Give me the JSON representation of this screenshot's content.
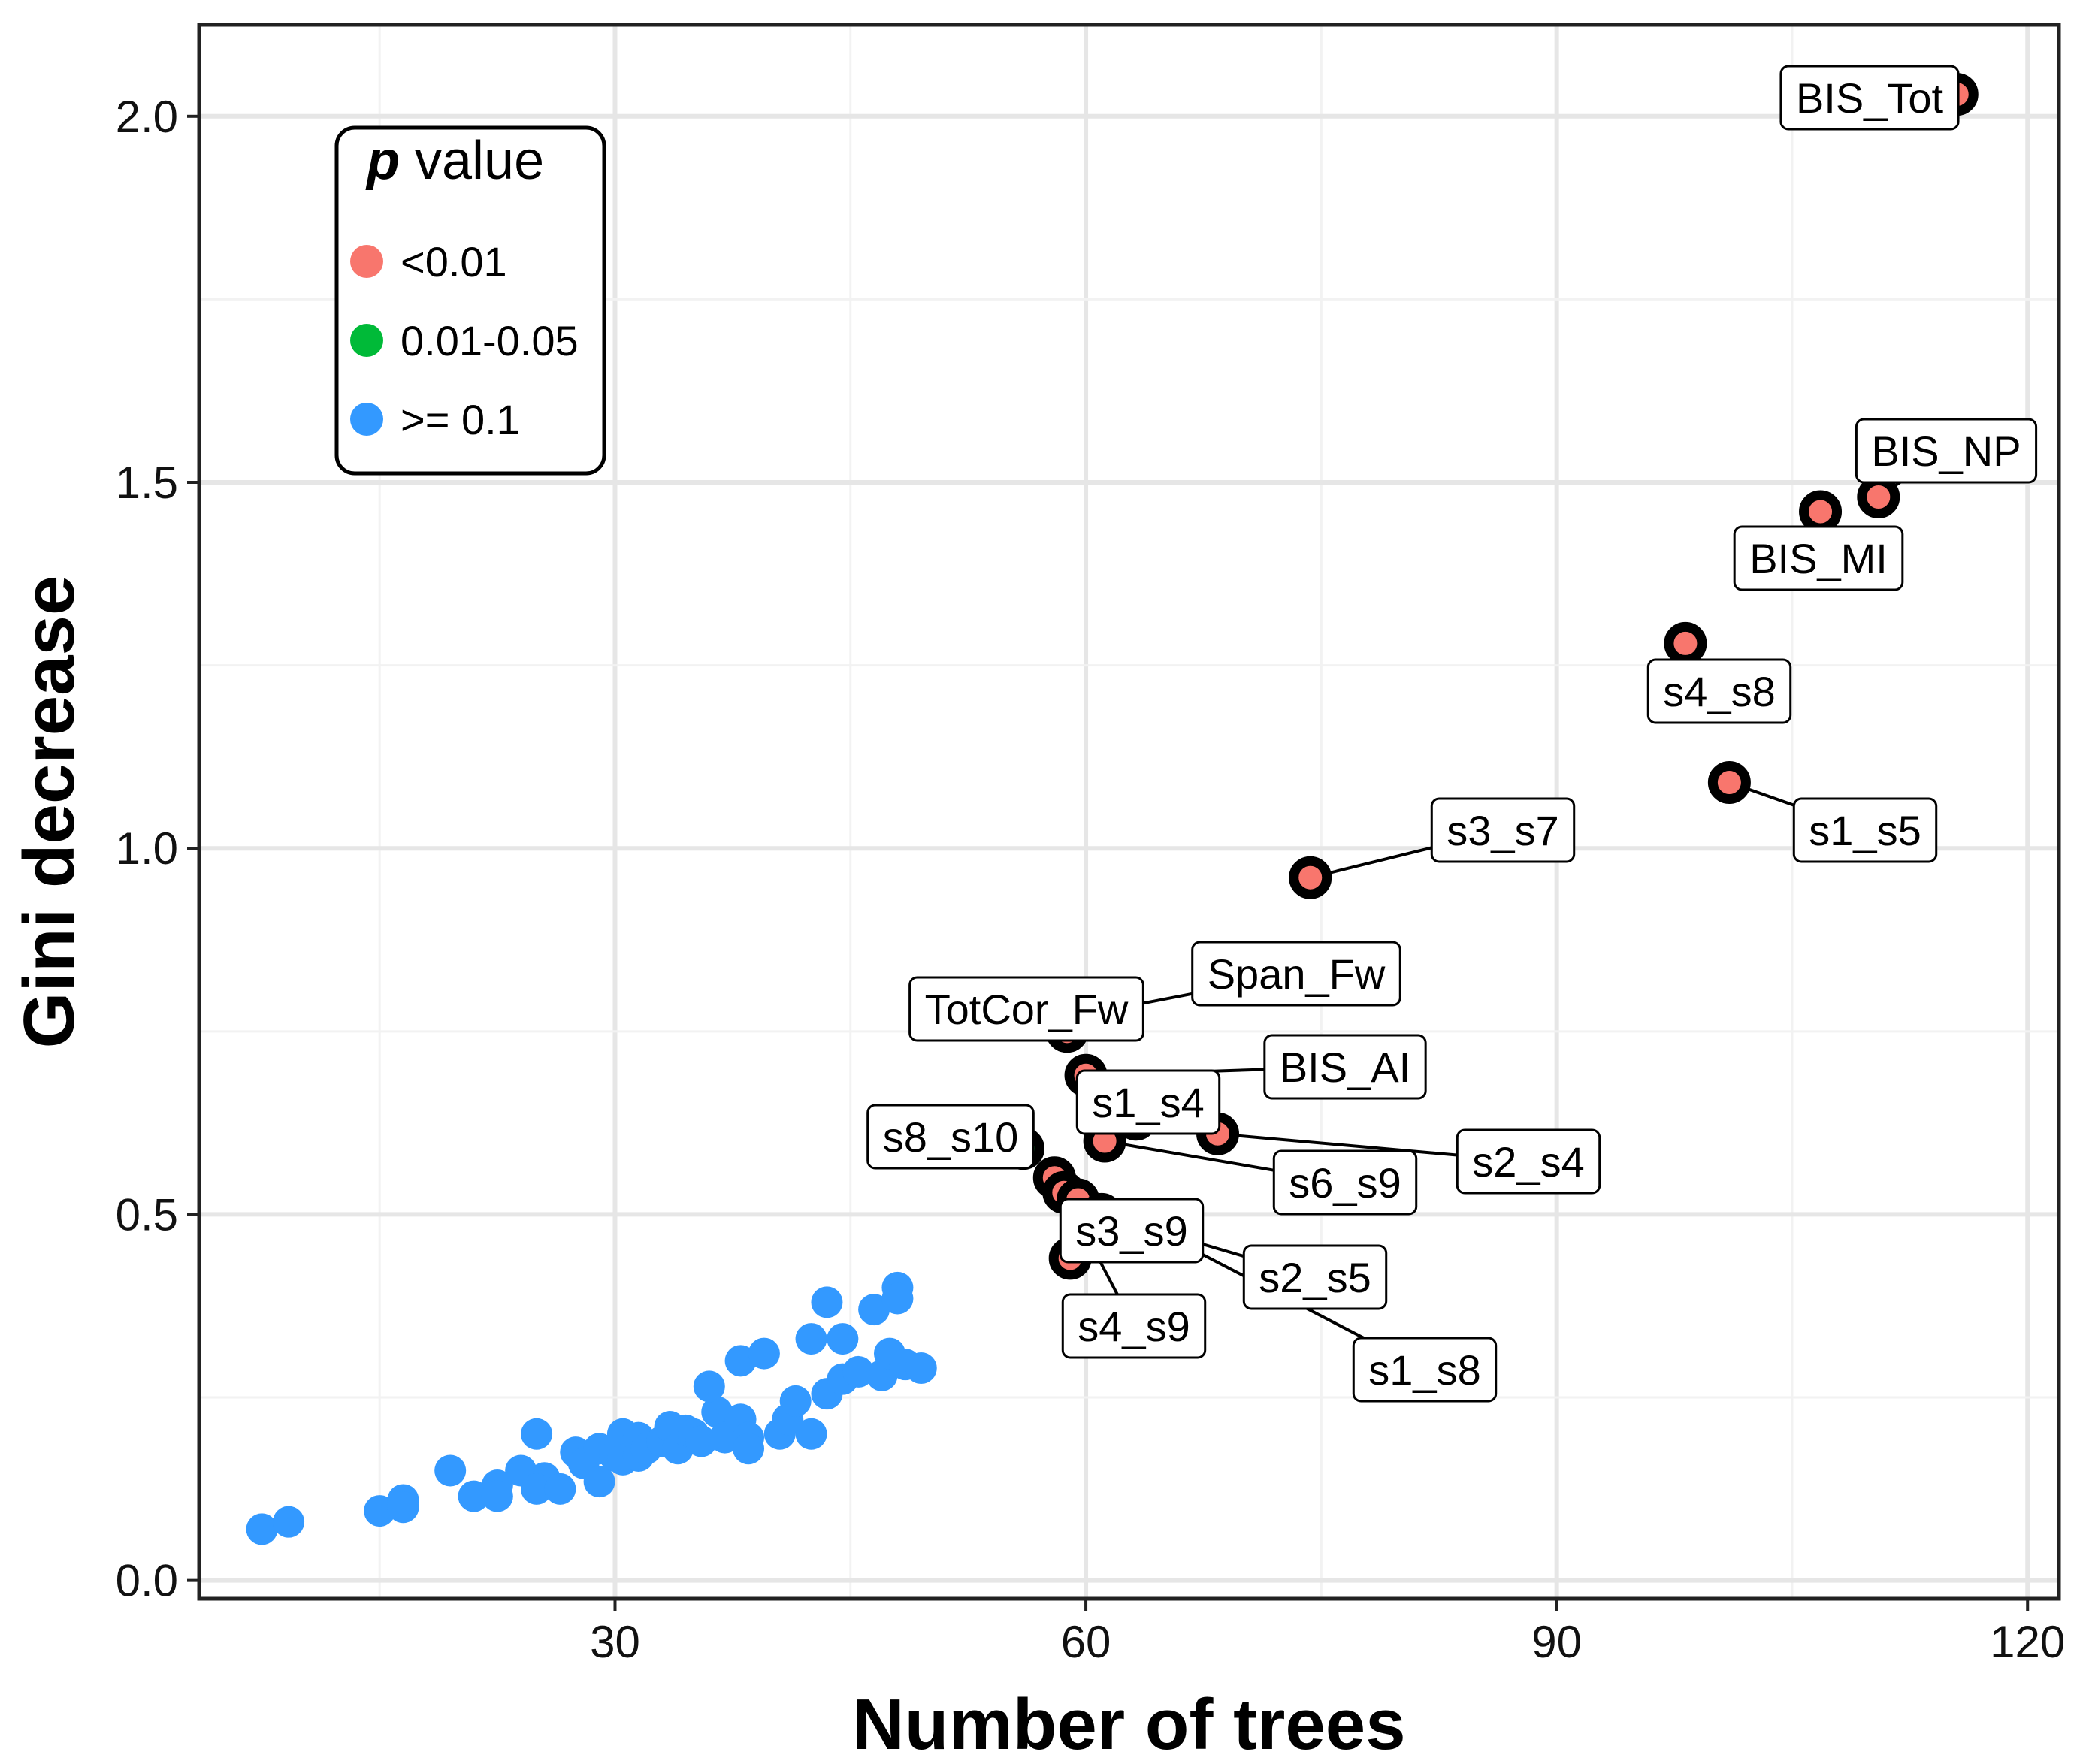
{
  "chart_data": {
    "type": "scatter",
    "xlabel": "Number of trees",
    "ylabel": "Gini decrease",
    "xlim": [
      3.5,
      122
    ],
    "ylim": [
      -0.025,
      2.125
    ],
    "x_ticks": [
      30,
      60,
      90,
      120
    ],
    "y_ticks": [
      0.0,
      0.5,
      1.0,
      1.5,
      2.0
    ],
    "x_tick_labels": [
      "30",
      "60",
      "90",
      "120"
    ],
    "y_tick_labels": [
      "0.0",
      "0.5",
      "1.0",
      "1.5",
      "2.0"
    ],
    "grid": true,
    "legend": {
      "title_italic": "p",
      "title_rest": " value",
      "placement": "top-left",
      "entries": [
        {
          "label": "<0.01",
          "color": "#F8766D"
        },
        {
          "label": "0.01-0.05",
          "color": "#00BA38"
        },
        {
          "label": ">= 0.1",
          "color": "#3399FF"
        }
      ]
    },
    "colors": {
      "sig_high": "#F8766D",
      "sig_mid": "#00BA38",
      "nonsig": "#3399FF",
      "outline": "#000000"
    },
    "labeled_points": [
      {
        "label": "BIS_Tot",
        "x": 115.5,
        "y": 2.03,
        "group": "<0.01"
      },
      {
        "label": "BIS_NP",
        "x": 110.5,
        "y": 1.48,
        "group": "<0.01"
      },
      {
        "label": "BIS_MI",
        "x": 106.8,
        "y": 1.46,
        "group": "<0.01"
      },
      {
        "label": "s4_s8",
        "x": 98.2,
        "y": 1.28,
        "group": "<0.01"
      },
      {
        "label": "s1_s5",
        "x": 101.0,
        "y": 1.09,
        "group": "<0.01"
      },
      {
        "label": "s3_s7",
        "x": 74.3,
        "y": 0.96,
        "group": "<0.01"
      },
      {
        "label": "Span_Fw",
        "x": 59.2,
        "y": 0.77,
        "group": "<0.01"
      },
      {
        "label": "TotCor_Fw",
        "x": 58.8,
        "y": 0.75,
        "group": "<0.01"
      },
      {
        "label": "BIS_AI",
        "x": 60.0,
        "y": 0.69,
        "group": "<0.01"
      },
      {
        "label": "s1_s4",
        "x": 63.2,
        "y": 0.63,
        "group": "<0.01"
      },
      {
        "label": "s2_s4",
        "x": 68.4,
        "y": 0.61,
        "group": "<0.01"
      },
      {
        "label": "s6_s9",
        "x": 61.2,
        "y": 0.6,
        "group": "<0.01"
      },
      {
        "label": "s8_s10",
        "x": 56.0,
        "y": 0.59,
        "group": "0.01-0.05"
      },
      {
        "label": "s1_s8",
        "x": 58.0,
        "y": 0.55,
        "group": "<0.01"
      },
      {
        "label": "s4_s9",
        "x": 58.6,
        "y": 0.53,
        "group": "<0.01"
      },
      {
        "label": "s3_s9",
        "x": 59.5,
        "y": 0.52,
        "group": "<0.01"
      },
      {
        "label": "s2_s5",
        "x": 61.0,
        "y": 0.5,
        "group": "<0.01"
      }
    ],
    "unlabeled_points": [
      {
        "x": 59.0,
        "y": 0.44,
        "group": "<0.01"
      },
      {
        "x": 7.5,
        "y": 0.07,
        "group": ">= 0.1"
      },
      {
        "x": 9.2,
        "y": 0.08,
        "group": ">= 0.1"
      },
      {
        "x": 15.0,
        "y": 0.095,
        "group": ">= 0.1"
      },
      {
        "x": 16.5,
        "y": 0.11,
        "group": ">= 0.1"
      },
      {
        "x": 16.5,
        "y": 0.1,
        "group": ">= 0.1"
      },
      {
        "x": 19.5,
        "y": 0.15,
        "group": ">= 0.1"
      },
      {
        "x": 21.0,
        "y": 0.115,
        "group": ">= 0.1"
      },
      {
        "x": 22.5,
        "y": 0.13,
        "group": ">= 0.1"
      },
      {
        "x": 22.5,
        "y": 0.115,
        "group": ">= 0.1"
      },
      {
        "x": 24.0,
        "y": 0.15,
        "group": ">= 0.1"
      },
      {
        "x": 25.0,
        "y": 0.2,
        "group": ">= 0.1"
      },
      {
        "x": 25.5,
        "y": 0.14,
        "group": ">= 0.1"
      },
      {
        "x": 25.0,
        "y": 0.125,
        "group": ">= 0.1"
      },
      {
        "x": 26.5,
        "y": 0.125,
        "group": ">= 0.1"
      },
      {
        "x": 27.5,
        "y": 0.175,
        "group": ">= 0.1"
      },
      {
        "x": 28.0,
        "y": 0.16,
        "group": ">= 0.1"
      },
      {
        "x": 29.0,
        "y": 0.18,
        "group": ">= 0.1"
      },
      {
        "x": 29.0,
        "y": 0.135,
        "group": ">= 0.1"
      },
      {
        "x": 30.0,
        "y": 0.17,
        "group": ">= 0.1"
      },
      {
        "x": 30.5,
        "y": 0.2,
        "group": ">= 0.1"
      },
      {
        "x": 30.5,
        "y": 0.165,
        "group": ">= 0.1"
      },
      {
        "x": 31.5,
        "y": 0.195,
        "group": ">= 0.1"
      },
      {
        "x": 31.5,
        "y": 0.17,
        "group": ">= 0.1"
      },
      {
        "x": 32.0,
        "y": 0.18,
        "group": ">= 0.1"
      },
      {
        "x": 33.0,
        "y": 0.19,
        "group": ">= 0.1"
      },
      {
        "x": 33.5,
        "y": 0.21,
        "group": ">= 0.1"
      },
      {
        "x": 34.0,
        "y": 0.18,
        "group": ">= 0.1"
      },
      {
        "x": 34.5,
        "y": 0.205,
        "group": ">= 0.1"
      },
      {
        "x": 35.0,
        "y": 0.2,
        "group": ">= 0.1"
      },
      {
        "x": 35.5,
        "y": 0.19,
        "group": ">= 0.1"
      },
      {
        "x": 36.5,
        "y": 0.23,
        "group": ">= 0.1"
      },
      {
        "x": 36.0,
        "y": 0.265,
        "group": ">= 0.1"
      },
      {
        "x": 37.0,
        "y": 0.195,
        "group": ">= 0.1"
      },
      {
        "x": 38.0,
        "y": 0.22,
        "group": ">= 0.1"
      },
      {
        "x": 38.5,
        "y": 0.195,
        "group": ">= 0.1"
      },
      {
        "x": 38.5,
        "y": 0.18,
        "group": ">= 0.1"
      },
      {
        "x": 38.0,
        "y": 0.3,
        "group": ">= 0.1"
      },
      {
        "x": 39.5,
        "y": 0.31,
        "group": ">= 0.1"
      },
      {
        "x": 40.5,
        "y": 0.2,
        "group": ">= 0.1"
      },
      {
        "x": 41.0,
        "y": 0.22,
        "group": ">= 0.1"
      },
      {
        "x": 41.5,
        "y": 0.245,
        "group": ">= 0.1"
      },
      {
        "x": 42.5,
        "y": 0.2,
        "group": ">= 0.1"
      },
      {
        "x": 42.5,
        "y": 0.33,
        "group": ">= 0.1"
      },
      {
        "x": 43.5,
        "y": 0.38,
        "group": ">= 0.1"
      },
      {
        "x": 43.5,
        "y": 0.255,
        "group": ">= 0.1"
      },
      {
        "x": 44.5,
        "y": 0.33,
        "group": ">= 0.1"
      },
      {
        "x": 44.5,
        "y": 0.275,
        "group": ">= 0.1"
      },
      {
        "x": 45.5,
        "y": 0.285,
        "group": ">= 0.1"
      },
      {
        "x": 46.5,
        "y": 0.37,
        "group": ">= 0.1"
      },
      {
        "x": 47.0,
        "y": 0.28,
        "group": ">= 0.1"
      },
      {
        "x": 47.5,
        "y": 0.31,
        "group": ">= 0.1"
      },
      {
        "x": 48.0,
        "y": 0.4,
        "group": ">= 0.1"
      },
      {
        "x": 48.0,
        "y": 0.385,
        "group": ">= 0.1"
      },
      {
        "x": 48.5,
        "y": 0.295,
        "group": ">= 0.1"
      },
      {
        "x": 49.5,
        "y": 0.29,
        "group": ">= 0.1"
      }
    ]
  }
}
